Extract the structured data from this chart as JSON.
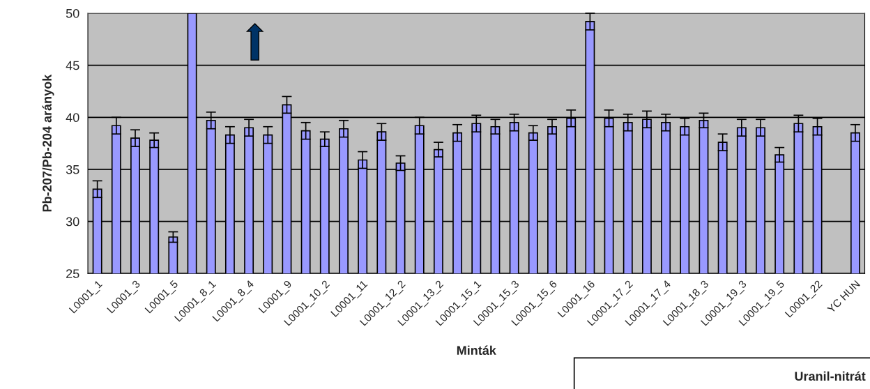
{
  "chart_data": {
    "type": "bar",
    "xlabel": "Minták",
    "ylabel": "Pb-207/Pb-204 arányok",
    "categories": [
      "L0001_1",
      null,
      "L0001_3",
      null,
      "L0001_5",
      null,
      "L0001_8_1",
      null,
      "L0001_8_4",
      null,
      "L0001_9",
      null,
      "L0001_10_2",
      null,
      "L0001_11",
      null,
      "L0001_12_2",
      null,
      "L0001_13_2",
      null,
      "L0001_15_1",
      null,
      "L0001_15_3",
      null,
      "L0001_15_6",
      null,
      "L0001_16",
      null,
      "L0001_17_2",
      null,
      "L0001_17_4",
      null,
      "L0001_18_3",
      null,
      "L0001_19_3",
      null,
      "L0001_19_5",
      null,
      "L0001_22",
      null,
      "YC HUN"
    ],
    "values": [
      33.1,
      39.2,
      38.0,
      37.8,
      28.5,
      50,
      39.7,
      38.3,
      39.0,
      38.3,
      41.2,
      38.7,
      37.9,
      38.9,
      35.9,
      38.6,
      35.6,
      39.2,
      36.9,
      38.5,
      39.4,
      39.1,
      39.5,
      38.5,
      39.1,
      39.9,
      49.2,
      39.9,
      39.5,
      39.8,
      39.5,
      39.1,
      39.7,
      37.6,
      39.0,
      39.0,
      36.4,
      39.4,
      39.1,
      null,
      38.5
    ],
    "errors": [
      0.8,
      0.8,
      0.8,
      0.7,
      0.5,
      null,
      0.8,
      0.8,
      0.8,
      0.8,
      0.8,
      0.8,
      0.7,
      0.8,
      0.8,
      0.8,
      0.7,
      0.8,
      0.7,
      0.8,
      0.8,
      0.7,
      0.8,
      0.7,
      0.7,
      0.8,
      0.8,
      0.8,
      0.8,
      0.8,
      0.8,
      0.8,
      0.7,
      0.8,
      0.8,
      0.8,
      0.7,
      0.8,
      0.8,
      null,
      0.8
    ],
    "color": "#9999ff",
    "ylim": [
      25,
      50
    ],
    "yticks": [
      25,
      30,
      35,
      40,
      45,
      50
    ],
    "grid": "y",
    "annotations": [
      "Uranil-nitrát"
    ]
  }
}
